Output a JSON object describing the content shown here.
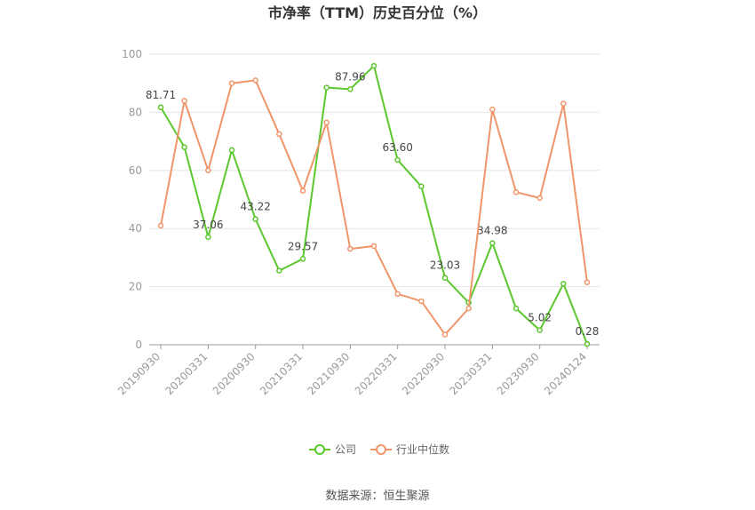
{
  "chart_data": {
    "type": "line",
    "title": "市净率（TTM）历史百分位（%）",
    "categories": [
      "20190930",
      null,
      "20200331",
      null,
      "20200930",
      null,
      "20210331",
      null,
      "20210930",
      null,
      "20220331",
      null,
      "20220930",
      null,
      "20230331",
      null,
      "20230930",
      null,
      "20240124"
    ],
    "series": [
      {
        "name": "公司",
        "color": "#5cc72e",
        "values": [
          81.71,
          68,
          37.06,
          67,
          43.22,
          25.5,
          29.57,
          88.5,
          87.96,
          96,
          63.6,
          54.5,
          23.03,
          14.5,
          34.98,
          12.5,
          5.02,
          21,
          0.28
        ],
        "value_labels": [
          "81.71",
          null,
          "37.06",
          null,
          "43.22",
          null,
          "29.57",
          null,
          "87.96",
          null,
          "63.60",
          null,
          "23.03",
          null,
          "34.98",
          null,
          "5.02",
          null,
          "0.28"
        ]
      },
      {
        "name": "行业中位数",
        "color": "#f0956a",
        "values": [
          41,
          84,
          60,
          90,
          91,
          72.5,
          53,
          76.5,
          33,
          34,
          17.5,
          15,
          3.5,
          12.5,
          81,
          52.5,
          50.5,
          83,
          21.5
        ]
      }
    ],
    "ylim": [
      0,
      100
    ],
    "yticks": [
      0,
      20,
      40,
      60,
      80,
      100
    ],
    "grid": true,
    "source": "数据来源：恒生聚源"
  }
}
